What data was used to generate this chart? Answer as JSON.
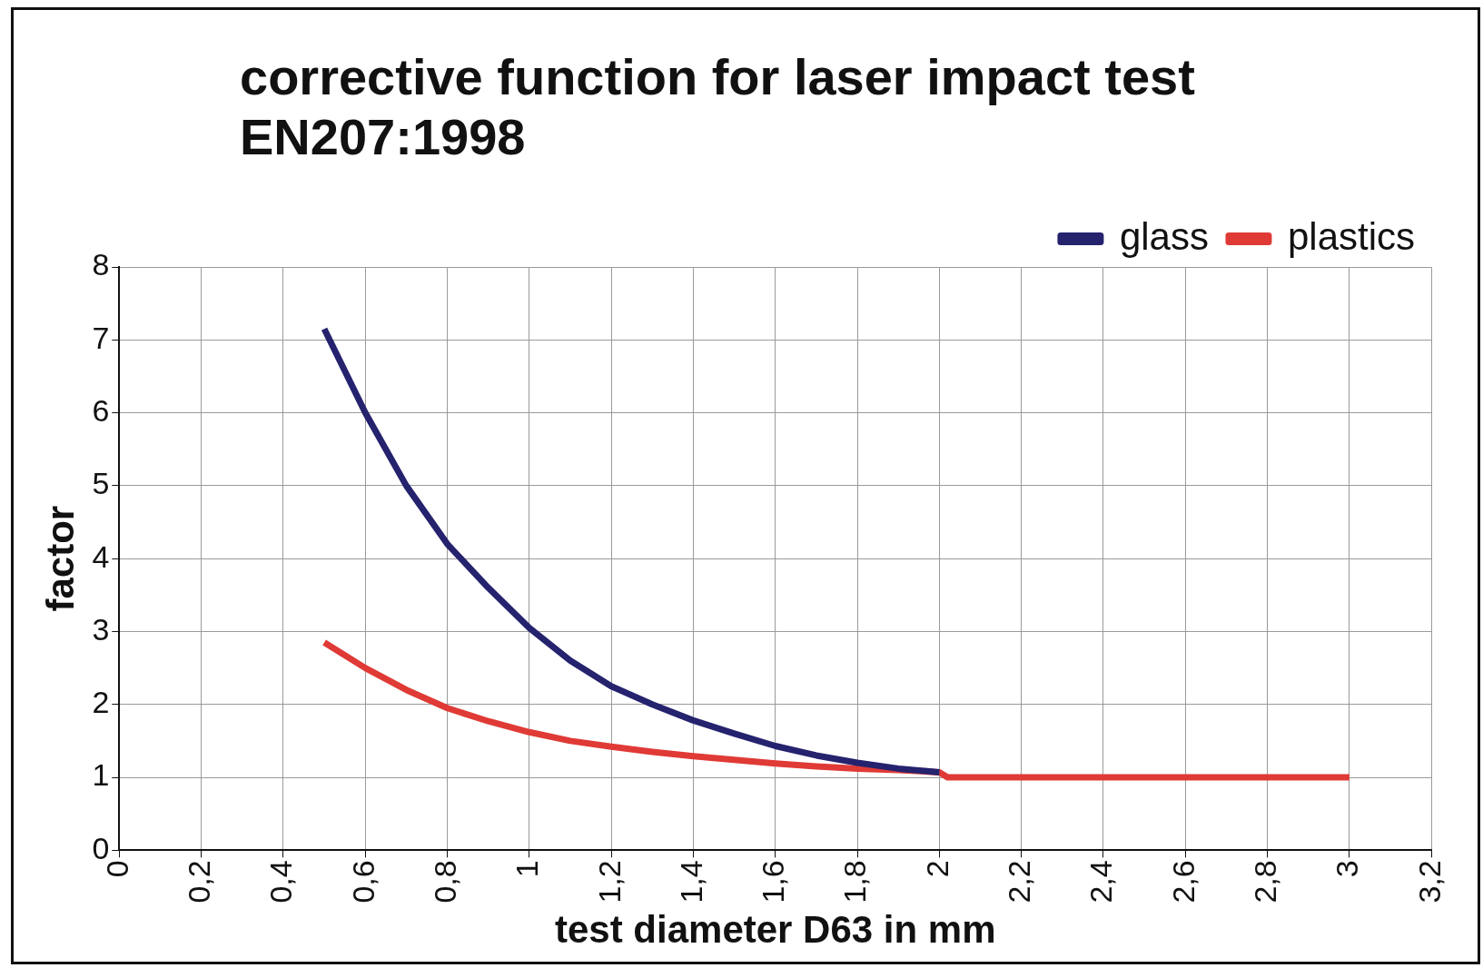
{
  "chart_data": {
    "type": "line",
    "title": "corrective function for laser impact test\nEN207:1998",
    "xlabel": "test diameter D63 in mm",
    "ylabel": "factor",
    "xlim": [
      0,
      3.2
    ],
    "xticks": [
      0,
      {
        "value": 0.2,
        "label": "0,2"
      },
      {
        "value": 0.4,
        "label": "0,4"
      },
      {
        "value": 0.6,
        "label": "0,6"
      },
      {
        "value": 0.8,
        "label": "0,8"
      },
      1,
      {
        "value": 1.2,
        "label": "1,2"
      },
      {
        "value": 1.4,
        "label": "1,4"
      },
      {
        "value": 1.6,
        "label": "1,6"
      },
      {
        "value": 1.8,
        "label": "1,8"
      },
      2,
      {
        "value": 2.2,
        "label": "2,2"
      },
      {
        "value": 2.4,
        "label": "2,4"
      },
      {
        "value": 2.6,
        "label": "2,6"
      },
      {
        "value": 2.8,
        "label": "2,8"
      },
      3,
      {
        "value": 3.2,
        "label": "3,2"
      }
    ],
    "ylim": [
      0,
      8
    ],
    "yticks": [
      0,
      1,
      2,
      3,
      4,
      5,
      6,
      7,
      8
    ],
    "grid": true,
    "legend": "top right",
    "marker": "none",
    "line_style": "solid",
    "series": [
      {
        "name": "glass",
        "color": "#25226e",
        "x": [
          0.5,
          0.6,
          0.7,
          0.8,
          0.9,
          1.0,
          1.1,
          1.2,
          1.3,
          1.4,
          1.5,
          1.6,
          1.7,
          1.8,
          1.9,
          2.0
        ],
        "values": [
          7.15,
          6.0,
          5.0,
          4.2,
          3.6,
          3.05,
          2.6,
          2.25,
          2.0,
          1.78,
          1.6,
          1.43,
          1.3,
          1.2,
          1.12,
          1.07
        ]
      },
      {
        "name": "plastics",
        "color": "#e03a36",
        "x": [
          0.5,
          0.6,
          0.7,
          0.8,
          0.9,
          1.0,
          1.1,
          1.2,
          1.3,
          1.4,
          1.5,
          1.6,
          1.7,
          1.8,
          1.9,
          2.0,
          2.02,
          3.0
        ],
        "values": [
          2.85,
          2.5,
          2.2,
          1.95,
          1.77,
          1.62,
          1.5,
          1.42,
          1.35,
          1.29,
          1.24,
          1.19,
          1.15,
          1.12,
          1.1,
          1.07,
          1.0,
          1.0
        ]
      }
    ]
  }
}
